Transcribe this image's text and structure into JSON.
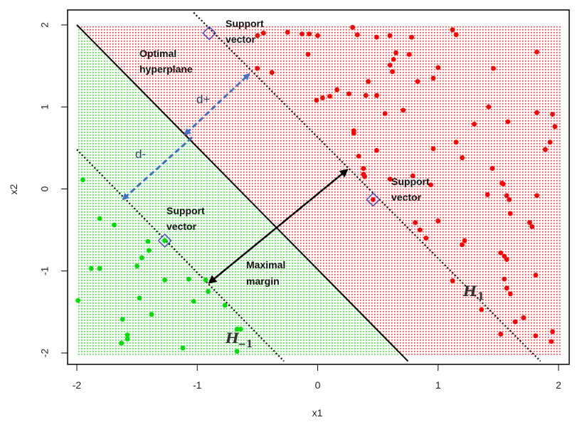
{
  "chart_data": {
    "type": "scatter",
    "title": "",
    "xlabel": "x1",
    "ylabel": "x2",
    "xlim": [
      -2,
      2
    ],
    "ylim": [
      -2,
      2
    ],
    "xticks": [
      "-2",
      "-1",
      "0",
      "1",
      "2"
    ],
    "yticks": [
      "-2",
      "-1",
      "0",
      "1",
      "2"
    ],
    "grid": false,
    "colors": {
      "positive_class": "#ff0000",
      "negative_class": "#00e000",
      "margin_arrow": "#4472c4",
      "boundary": "#000000"
    },
    "boundary_lines": [
      {
        "name": "optimal_hyperplane",
        "x": [
          -2,
          0.75
        ],
        "y": [
          2,
          -2.1
        ],
        "style": "solid"
      },
      {
        "name": "H1",
        "x": [
          -1.03,
          1.85
        ],
        "y": [
          2.15,
          -2.1
        ],
        "style": "dotted"
      },
      {
        "name": "H-1",
        "x": [
          -2,
          -0.28
        ],
        "y": [
          0.48,
          -2.1
        ],
        "style": "dotted"
      }
    ],
    "support_vectors": [
      {
        "x": -0.9,
        "y": 1.9
      },
      {
        "x": 0.46,
        "y": -0.13
      },
      {
        "x": -1.27,
        "y": -0.63
      }
    ],
    "series": [
      {
        "name": "red",
        "points": [
          [
            -0.5,
            1.87
          ],
          [
            -0.45,
            1.9
          ],
          [
            -0.25,
            1.91
          ],
          [
            -0.13,
            1.89
          ],
          [
            -0.07,
            1.89
          ],
          [
            -0.08,
            1.64
          ],
          [
            0.0,
            1.87
          ],
          [
            0.29,
            1.97
          ],
          [
            0.33,
            1.88
          ],
          [
            0.49,
            1.85
          ],
          [
            0.6,
            1.87
          ],
          [
            0.78,
            1.85
          ],
          [
            1.12,
            1.94
          ],
          [
            1.15,
            1.88
          ],
          [
            -0.5,
            1.47
          ],
          [
            -0.38,
            1.42
          ],
          [
            0.65,
            1.66
          ],
          [
            0.63,
            1.58
          ],
          [
            0.6,
            1.51
          ],
          [
            0.62,
            1.43
          ],
          [
            0.76,
            1.64
          ],
          [
            1.0,
            1.48
          ],
          [
            0.96,
            1.35
          ],
          [
            1.46,
            1.47
          ],
          [
            1.82,
            1.67
          ],
          [
            0.04,
            1.11
          ],
          [
            0.1,
            1.13
          ],
          [
            0.16,
            1.21
          ],
          [
            0.26,
            1.16
          ],
          [
            0.4,
            1.14
          ],
          [
            0.49,
            1.14
          ],
          [
            0.56,
            0.92
          ],
          [
            0.71,
            0.96
          ],
          [
            0.83,
            1.31
          ],
          [
            0.42,
            1.31
          ],
          [
            -0.01,
            1.08
          ],
          [
            0.3,
            0.71
          ],
          [
            0.3,
            0.68
          ],
          [
            0.49,
            0.47
          ],
          [
            0.34,
            0.4
          ],
          [
            1.15,
            0.57
          ],
          [
            1.2,
            0.38
          ],
          [
            1.3,
            0.79
          ],
          [
            1.42,
            1.0
          ],
          [
            1.58,
            0.82
          ],
          [
            1.82,
            0.93
          ],
          [
            1.95,
            0.91
          ],
          [
            1.97,
            0.76
          ],
          [
            1.93,
            0.57
          ],
          [
            1.89,
            0.48
          ],
          [
            0.96,
            0.49
          ],
          [
            0.38,
            0.25
          ],
          [
            0.38,
            0.18
          ],
          [
            0.39,
            0.15
          ],
          [
            0.46,
            -0.13
          ],
          [
            0.6,
            0.12
          ],
          [
            0.79,
            0.16
          ],
          [
            0.94,
            0.05
          ],
          [
            1.45,
            0.25
          ],
          [
            1.53,
            0.07
          ],
          [
            1.54,
            0.06
          ],
          [
            1.57,
            -0.08
          ],
          [
            1.59,
            -0.13
          ],
          [
            1.6,
            -0.3
          ],
          [
            1.82,
            -0.08
          ],
          [
            0.81,
            -0.41
          ],
          [
            0.85,
            -0.5
          ],
          [
            0.9,
            -0.6
          ],
          [
            1.0,
            -0.39
          ],
          [
            1.2,
            -0.68
          ],
          [
            1.22,
            -0.63
          ],
          [
            1.41,
            -0.07
          ],
          [
            1.76,
            -0.41
          ],
          [
            1.78,
            -0.46
          ],
          [
            1.52,
            -0.78
          ],
          [
            1.55,
            -0.82
          ],
          [
            1.57,
            -0.86
          ],
          [
            1.55,
            -1.1
          ],
          [
            1.57,
            -1.21
          ],
          [
            1.6,
            -1.28
          ],
          [
            1.81,
            -1.05
          ],
          [
            1.12,
            -1.12
          ],
          [
            1.36,
            -1.47
          ],
          [
            1.52,
            -1.77
          ],
          [
            1.64,
            -1.62
          ],
          [
            1.71,
            -1.57
          ],
          [
            1.81,
            -1.79
          ],
          [
            1.95,
            -1.74
          ],
          [
            1.94,
            -1.86
          ]
        ]
      },
      {
        "name": "green",
        "points": [
          [
            -1.95,
            0.11
          ],
          [
            -1.81,
            -0.36
          ],
          [
            -1.69,
            -0.44
          ],
          [
            -1.99,
            -1.36
          ],
          [
            -1.88,
            -0.97
          ],
          [
            -1.81,
            -0.97
          ],
          [
            -1.27,
            -0.63
          ],
          [
            -1.41,
            -0.64
          ],
          [
            -1.4,
            -0.75
          ],
          [
            -1.46,
            -0.84
          ],
          [
            -1.5,
            -0.94
          ],
          [
            -1.27,
            -1.11
          ],
          [
            -1.48,
            -1.33
          ],
          [
            -1.38,
            -1.53
          ],
          [
            -1.07,
            -1.1
          ],
          [
            -0.93,
            -1.11
          ],
          [
            -0.91,
            -1.25
          ],
          [
            -1.03,
            -1.37
          ],
          [
            -0.77,
            -1.42
          ],
          [
            -1.62,
            -1.59
          ],
          [
            -1.58,
            -1.78
          ],
          [
            -1.58,
            -1.83
          ],
          [
            -1.63,
            -1.88
          ],
          [
            -1.12,
            -1.94
          ],
          [
            -0.67,
            -1.71
          ],
          [
            -0.64,
            -1.71
          ],
          [
            -0.67,
            -1.98
          ]
        ]
      }
    ],
    "annotations": {
      "optimal_hyperplane": [
        "Optimal",
        "hyperplane"
      ],
      "support_vector_top": [
        "Support",
        "vector"
      ],
      "support_vector_right": [
        "Support",
        "vector"
      ],
      "support_vector_left": [
        "Support",
        "vector"
      ],
      "maximal_margin": [
        "Maximal",
        "margin"
      ],
      "d_plus": "d+",
      "d_minus": "d-",
      "h1_main": "H",
      "h1_sub": "1",
      "hm1_main": "H",
      "hm1_sub": "−1"
    }
  }
}
